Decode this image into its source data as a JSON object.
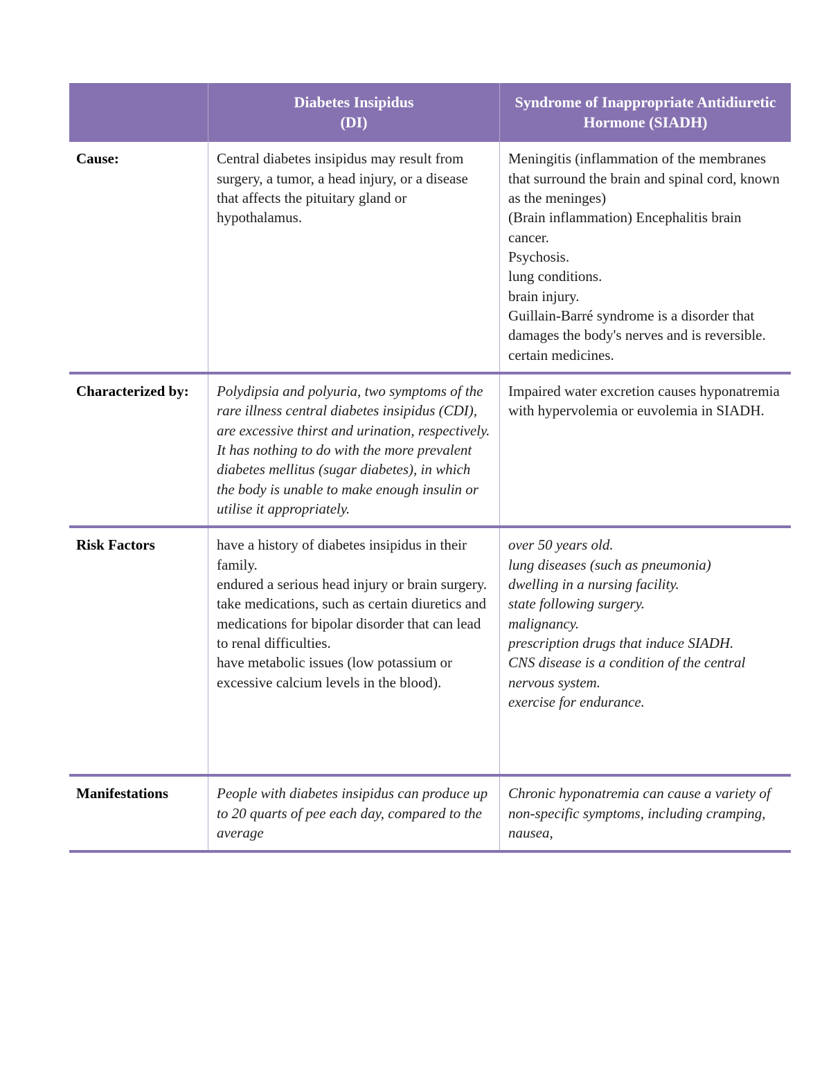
{
  "table": {
    "header_bg": "#8672b0",
    "header_text_color": "#ffffff",
    "divider_color": "#8672b0",
    "cell_border_color": "#b8a8d0",
    "background_color": "#ffffff",
    "text_color": "#1a1a1a",
    "columns": {
      "blank": "",
      "di": "Diabetes Insipidus\n(DI)",
      "siadh": "Syndrome of Inappropriate Antidiuretic Hormone (SIADH)"
    },
    "rows": [
      {
        "label": "Cause:",
        "di": "Central diabetes insipidus may result from surgery, a tumor, a head injury, or a disease that affects the pituitary gland or hypothalamus.",
        "di_italic": false,
        "siadh": "Meningitis (inflammation of the membranes that surround the brain and spinal cord, known as the meninges)\n(Brain inflammation) Encephalitis brain cancer.\nPsychosis.\nlung conditions.\nbrain injury.\nGuillain-Barré syndrome is a disorder that damages the body's nerves and is reversible.\ncertain medicines.",
        "siadh_italic": false
      },
      {
        "label": "Characterized by:",
        "di": "Polydipsia and polyuria, two symptoms of the rare illness central diabetes insipidus (CDI), are excessive thirst and urination, respectively. It has nothing to do with the more prevalent diabetes mellitus (sugar diabetes), in which the body is unable to make enough insulin or utilise it appropriately.",
        "di_italic": true,
        "siadh": "Impaired water excretion causes hyponatremia with hypervolemia or euvolemia in SIADH.",
        "siadh_italic": false
      },
      {
        "label": "Risk Factors",
        "di": "have a history of diabetes insipidus in their family.\nendured a serious head injury or brain surgery.\ntake medications, such as certain diuretics and medications for bipolar disorder that can lead to renal difficulties.\nhave metabolic issues (low potassium or excessive calcium levels in the blood).",
        "di_italic": false,
        "siadh": "over 50 years old.\nlung diseases (such as pneumonia)\ndwelling in a nursing facility.\nstate following surgery.\nmalignancy.\nprescription drugs that induce SIADH.\nCNS disease is a condition of the central nervous system.\nexercise for endurance.",
        "siadh_italic": true,
        "extra_bottom_space": true
      },
      {
        "label": "Manifestations",
        "di": "People with diabetes insipidus can produce up to 20 quarts of pee each day, compared to the average",
        "di_italic": true,
        "siadh": "Chronic hyponatremia can cause a variety of non-specific symptoms, including cramping, nausea,",
        "siadh_italic": true
      }
    ]
  }
}
